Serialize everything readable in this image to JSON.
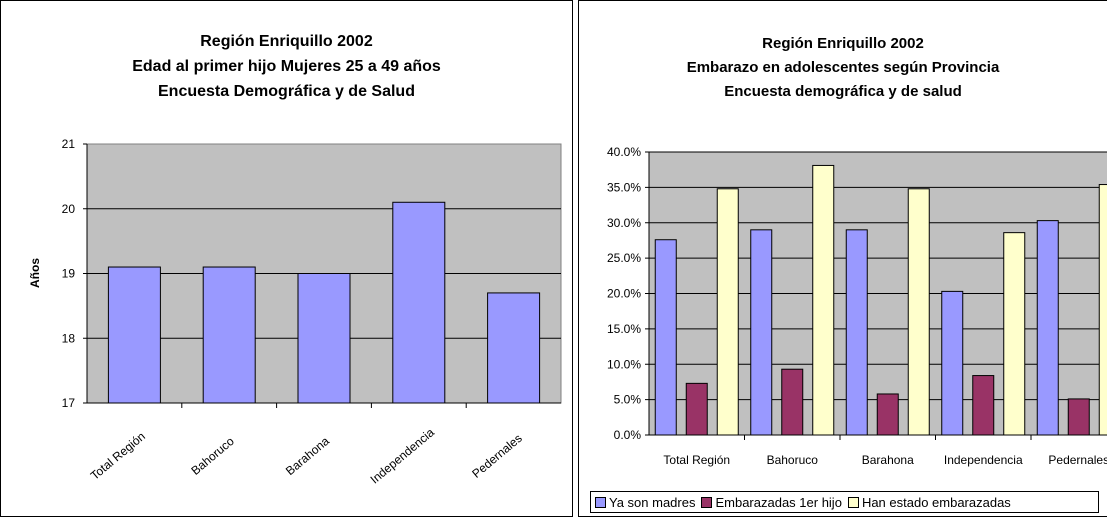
{
  "charts": [
    {
      "title_lines": [
        "Región Enriquillo 2002",
        "Edad al primer hijo Mujeres 25 a 49 años",
        "Encuesta Demográfica y de Salud"
      ],
      "chart_data": {
        "type": "bar",
        "title": "Región Enriquillo 2002 / Edad al primer hijo Mujeres 25 a 49 años / Encuesta Demográfica y de Salud",
        "categories": [
          "Total Región",
          "Bahoruco",
          "Barahona",
          "Independencia",
          "Pedernales"
        ],
        "values": [
          19.1,
          19.1,
          19.0,
          20.1,
          18.7
        ],
        "ylabel": "Años",
        "xlabel": "",
        "ylim": [
          17,
          21
        ],
        "yticks": [
          "17",
          "18",
          "19",
          "20",
          "21"
        ],
        "grid": true,
        "legend": "none",
        "colors": {
          "bar": "#9999ff",
          "plot_bg": "#c0c0c0",
          "first_label": "#9999ff"
        }
      }
    },
    {
      "title_lines": [
        "Región Enriquillo 2002",
        "Embarazo en adolescentes según Provincia",
        "Encuesta demográfica y de salud"
      ],
      "chart_data": {
        "type": "bar",
        "title": "Región Enriquillo 2002 / Embarazo en adolescentes según Provincia / Encuesta demográfica y de salud",
        "categories": [
          "Total Región",
          "Bahoruco",
          "Barahona",
          "Independencia",
          "Pedernales"
        ],
        "series": [
          {
            "name": "Ya son madres",
            "values": [
              27.6,
              29.0,
              29.0,
              20.3,
              30.3
            ],
            "color": "#9999ff"
          },
          {
            "name": "Embarazadas 1er hijo",
            "values": [
              7.3,
              9.3,
              5.8,
              8.4,
              5.1
            ],
            "color": "#993366"
          },
          {
            "name": "Han estado embarazadas",
            "values": [
              34.8,
              38.1,
              34.8,
              28.6,
              35.4
            ],
            "color": "#ffffcc"
          }
        ],
        "ylim": [
          0,
          40
        ],
        "yticks": [
          "0.0%",
          "5.0%",
          "10.0%",
          "15.0%",
          "20.0%",
          "25.0%",
          "30.0%",
          "35.0%",
          "40.0%"
        ],
        "xlabel": "",
        "ylabel": "",
        "grid": true,
        "legend": "bottom",
        "colors": {
          "plot_bg": "#c0c0c0"
        }
      }
    }
  ]
}
